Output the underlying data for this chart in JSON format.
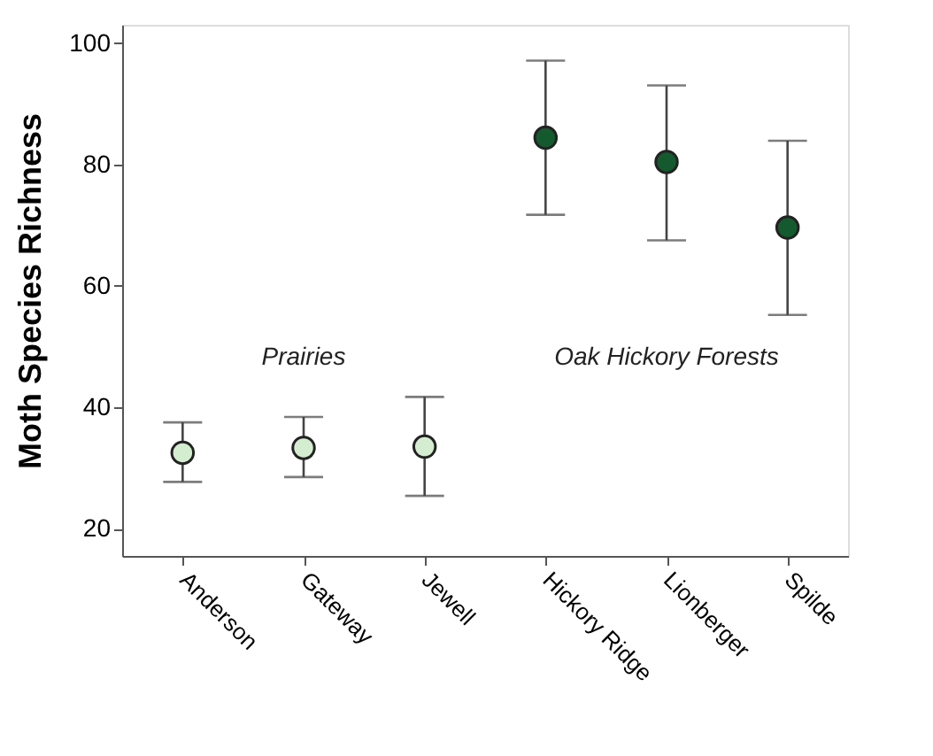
{
  "chart_data": {
    "type": "scatter",
    "ylabel": "Moth Species Richness",
    "categories": [
      "Anderson",
      "Gateway",
      "Jewell",
      "Hickory Ridge",
      "Lionberger",
      "Spilde"
    ],
    "series": [
      {
        "color": "#d4ecd0",
        "values": [
          32.5,
          33.3,
          33.5,
          null,
          null,
          null
        ],
        "errors": [
          [
            27.7,
            37.5
          ],
          [
            28.5,
            38.4
          ],
          [
            25.4,
            41.7
          ],
          null,
          null,
          null
        ]
      },
      {
        "color": "#145a2e",
        "values": [
          null,
          null,
          null,
          84.4,
          80.4,
          69.6
        ],
        "errors": [
          null,
          null,
          null,
          [
            71.7,
            97.1
          ],
          [
            67.5,
            93.0
          ],
          [
            55.2,
            83.9
          ]
        ]
      }
    ],
    "annotations": [
      "Prairies",
      "Oak Hickory Forests"
    ],
    "ylim": [
      15.5,
      103
    ],
    "yticks": [
      20,
      40,
      60,
      80,
      100
    ],
    "grid": false,
    "legend": false,
    "marker": "circle"
  }
}
